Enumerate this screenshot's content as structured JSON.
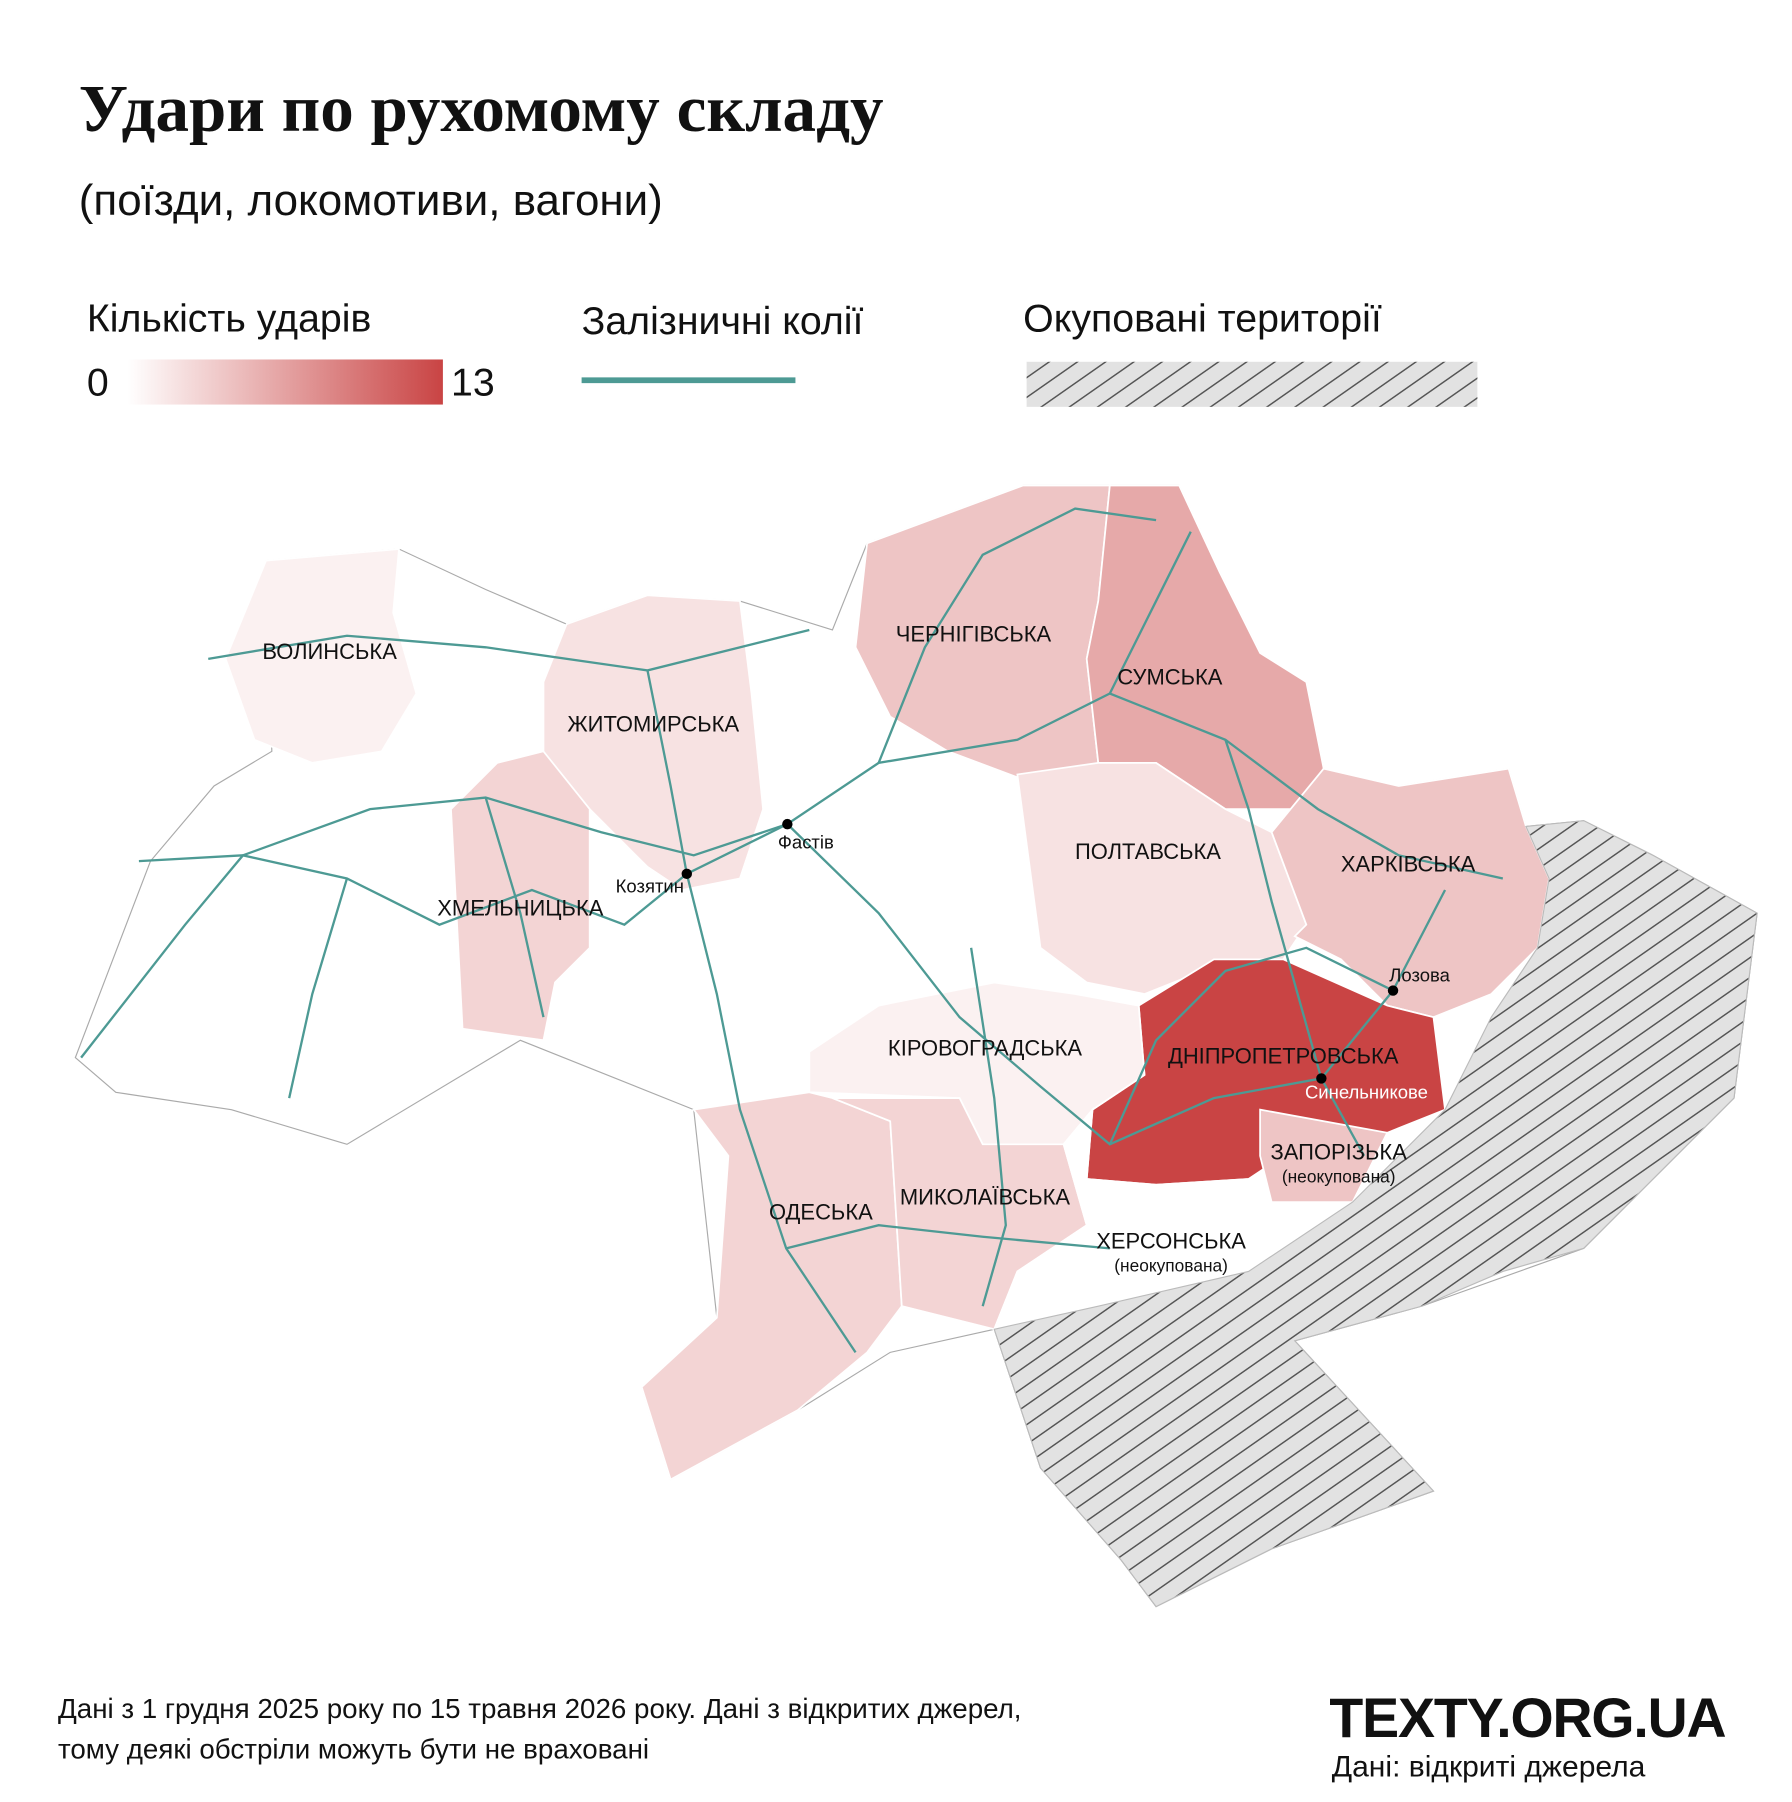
{
  "title": "Удари по рухомому складу",
  "subtitle": "(поїзди, локомотиви, вагони)",
  "legend": {
    "title": "Кількість ударів",
    "min": 0,
    "max": 13,
    "low_color": "#ffffff",
    "high_color": "#c94444"
  },
  "railways_label": "Залізничні колії",
  "railway_color": "#4d9a94",
  "occupied_label": "Окуповані території",
  "regions": [
    {
      "name": "ВОЛИНСЬКА",
      "value": 1
    },
    {
      "name": "ЖИТОМИРСЬКА",
      "value": 2
    },
    {
      "name": "ХМЕЛЬНИЦЬКА",
      "value": 3
    },
    {
      "name": "ЧЕРНІГІВСЬКА",
      "value": 4
    },
    {
      "name": "СУМСЬКА",
      "value": 6
    },
    {
      "name": "ПОЛТАВСЬКА",
      "value": 2
    },
    {
      "name": "ХАРКІВСЬКА",
      "value": 4
    },
    {
      "name": "ДНІПРОПЕТРОВСЬКА",
      "value": 13
    },
    {
      "name": "ЗАПОРІЗЬКА",
      "note": "(неокупована)",
      "value": 4
    },
    {
      "name": "КІРОВОГРАДСЬКА",
      "value": 1
    },
    {
      "name": "ОДЕСЬКА",
      "value": 3
    },
    {
      "name": "МИКОЛАЇВСЬКА",
      "value": 3
    },
    {
      "name": "ХЕРСОНСЬКА",
      "note": "(неокупована)",
      "value": 0
    }
  ],
  "cities": [
    "Фастів",
    "Козятин",
    "Лозова",
    "Синельникове"
  ],
  "footnote": [
    "Дані з 1 грудня 2025 року по 15 травня 2026 року. Дані з відкритих джерел,",
    "тому деякі обстріли можуть бути не враховані"
  ],
  "brand": "TEXTY.ORG.UA",
  "source": "Дані: відкриті джерела"
}
